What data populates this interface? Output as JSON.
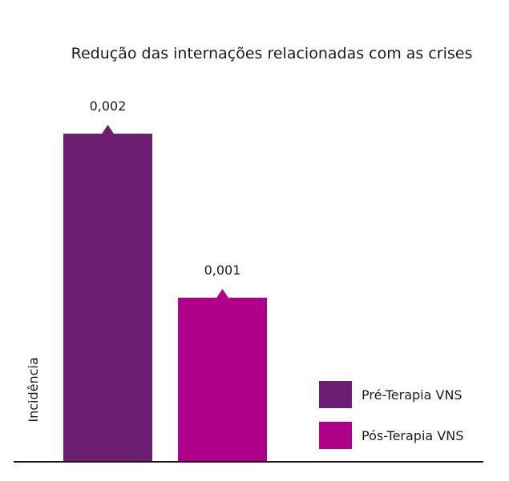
{
  "chart_data": {
    "type": "bar",
    "title": "Redução das internações relacionadas com as crises",
    "xlabel": "",
    "ylabel": "Incidência",
    "ylim": [
      0,
      0.00245
    ],
    "grid": false,
    "legend_position": "bottom-right",
    "categories": [
      "Pré-Terapia VNS",
      "Pós-Terapia VNS"
    ],
    "values": [
      0.002,
      0.001
    ],
    "value_labels": [
      "0,002",
      "0,001"
    ],
    "colors": [
      "#6b1e72",
      "#b0008a"
    ],
    "legend": [
      {
        "label": "Pré-Terapia VNS",
        "color": "#6b1e72"
      },
      {
        "label": "Pós-Terapia VNS",
        "color": "#b0008a"
      }
    ]
  }
}
